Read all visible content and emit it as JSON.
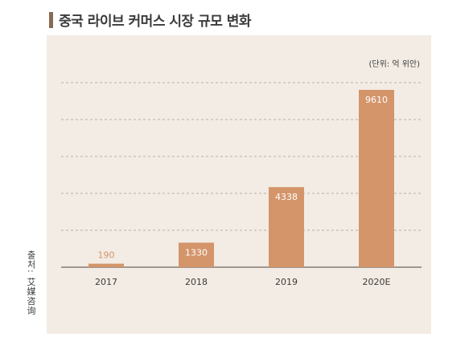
{
  "header": {
    "title": "중국 라이브 커머스 시장 규모 변화",
    "unit_note": "(단위: 억 위안)"
  },
  "source_note": "출처: 艾媒咨询",
  "colors": {
    "bar": "#d4956a",
    "panel_bg": "#f3ece4",
    "accent_bar": "#8a6a52",
    "small_value_label": "#d4956a",
    "inside_value_label": "#ffffff"
  },
  "chart_data": {
    "type": "bar",
    "categories": [
      "2017",
      "2018",
      "2019",
      "2020E"
    ],
    "values": [
      190,
      1330,
      4338,
      9610
    ],
    "title": "중국 라이브 커머스 시장 규모 변화",
    "xlabel": "",
    "ylabel": "",
    "unit": "(단위: 억 위안)",
    "ylim": [
      0,
      10000
    ],
    "grid": true,
    "legend": "none",
    "data_labels": [
      "190",
      "1330",
      "4338",
      "9610"
    ]
  }
}
